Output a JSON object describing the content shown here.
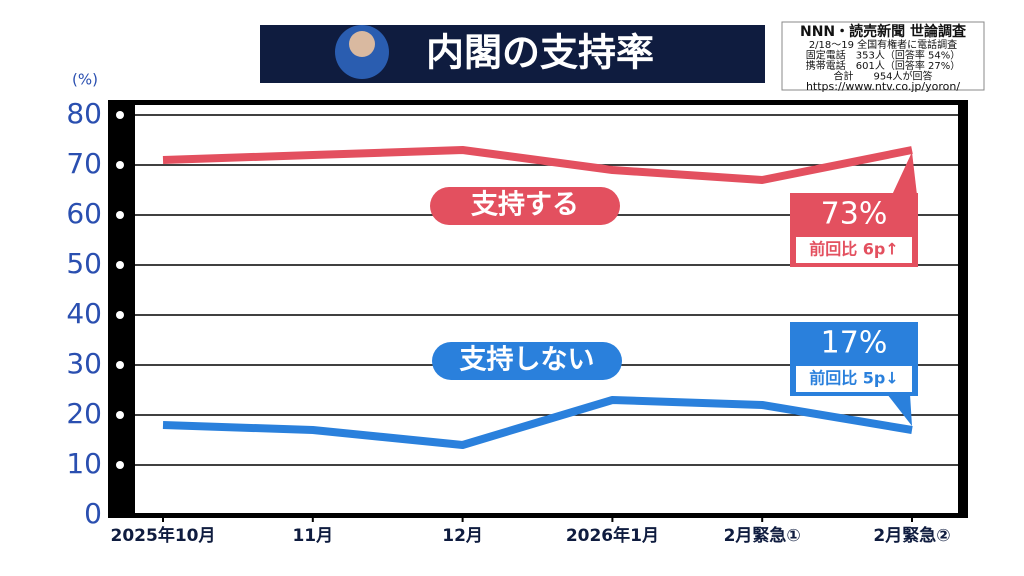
{
  "chart_data": {
    "type": "line",
    "title": "内閣の支持率",
    "source_notes": [
      "NNN・読売新聞 世論調査",
      "2/18〜19 全国有権者に電話調査",
      "固定電話　353人（回答率 54%）",
      "携帯電話　601人（回答率 27%）",
      "合計　　954人が回答",
      "https://www.ntv.co.jp/yoron/"
    ],
    "y_unit": "(%)",
    "categories": [
      "2025年10月",
      "11月",
      "12月",
      "2026年1月",
      "2月緊急①",
      "2月緊急②"
    ],
    "series": [
      {
        "name": "支持する",
        "color": "#e3505f",
        "values": [
          71,
          72,
          73,
          69,
          67,
          73
        ],
        "value_labels": [
          null,
          null,
          null,
          null,
          null,
          "73%"
        ],
        "change_note": "前回比 6p↑"
      },
      {
        "name": "支持しない",
        "color": "#2a80dc",
        "values": [
          18,
          17,
          14,
          23,
          22,
          17
        ],
        "value_labels": [
          null,
          null,
          null,
          null,
          null,
          "17%"
        ],
        "change_note": "前回比 5p↓"
      }
    ],
    "ylim": [
      0,
      80
    ],
    "yticks": [
      0,
      10,
      20,
      30,
      40,
      50,
      60,
      70,
      80
    ],
    "grid": true
  }
}
